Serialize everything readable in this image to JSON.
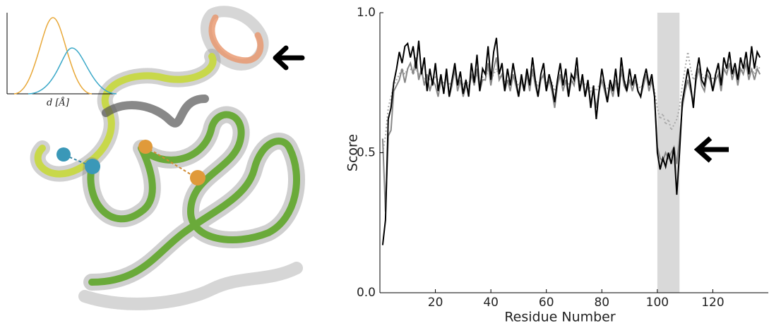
{
  "inset": {
    "xlabel": "d [Å]"
  },
  "chart_data": {
    "type": "line",
    "xlabel": "Residue Number",
    "ylabel": "Score",
    "xlim": [
      0,
      140
    ],
    "ylim": [
      0,
      1
    ],
    "xticks": [
      20,
      40,
      60,
      80,
      100,
      120
    ],
    "yticks": [
      {
        "value": 0,
        "label": "0.0"
      },
      {
        "value": 0.5,
        "label": "0.5"
      },
      {
        "value": 1,
        "label": "1.0"
      }
    ],
    "shade_range": [
      100,
      108
    ],
    "shade_color": "#d9d9d9",
    "x": [
      1,
      2,
      3,
      4,
      5,
      6,
      7,
      8,
      9,
      10,
      11,
      12,
      13,
      14,
      15,
      16,
      17,
      18,
      19,
      20,
      21,
      22,
      23,
      24,
      25,
      26,
      27,
      28,
      29,
      30,
      31,
      32,
      33,
      34,
      35,
      36,
      37,
      38,
      39,
      40,
      41,
      42,
      43,
      44,
      45,
      46,
      47,
      48,
      49,
      50,
      51,
      52,
      53,
      54,
      55,
      56,
      57,
      58,
      59,
      60,
      61,
      62,
      63,
      64,
      65,
      66,
      67,
      68,
      69,
      70,
      71,
      72,
      73,
      74,
      75,
      76,
      77,
      78,
      79,
      80,
      81,
      82,
      83,
      84,
      85,
      86,
      87,
      88,
      89,
      90,
      91,
      92,
      93,
      94,
      95,
      96,
      97,
      98,
      99,
      100,
      101,
      102,
      103,
      104,
      105,
      106,
      107,
      108,
      109,
      110,
      111,
      112,
      113,
      114,
      115,
      116,
      117,
      118,
      119,
      120,
      121,
      122,
      123,
      124,
      125,
      126,
      127,
      128,
      129,
      130,
      131,
      132,
      133,
      134,
      135,
      136,
      137
    ],
    "series": [
      {
        "color": "#aaaaaa",
        "dash": true,
        "values": [
          0.5,
          0.56,
          0.66,
          0.7,
          0.74,
          0.76,
          0.78,
          0.8,
          0.78,
          0.8,
          0.8,
          0.78,
          0.8,
          0.78,
          0.78,
          0.76,
          0.78,
          0.76,
          0.76,
          0.77,
          0.76,
          0.76,
          0.75,
          0.77,
          0.74,
          0.76,
          0.78,
          0.76,
          0.76,
          0.74,
          0.76,
          0.74,
          0.78,
          0.76,
          0.78,
          0.75,
          0.77,
          0.76,
          0.8,
          0.76,
          0.78,
          0.8,
          0.77,
          0.78,
          0.75,
          0.76,
          0.75,
          0.77,
          0.76,
          0.74,
          0.76,
          0.74,
          0.77,
          0.75,
          0.78,
          0.76,
          0.74,
          0.76,
          0.77,
          0.75,
          0.76,
          0.75,
          0.72,
          0.75,
          0.77,
          0.75,
          0.76,
          0.74,
          0.76,
          0.75,
          0.78,
          0.75,
          0.76,
          0.74,
          0.75,
          0.72,
          0.74,
          0.72,
          0.74,
          0.76,
          0.74,
          0.73,
          0.75,
          0.74,
          0.76,
          0.74,
          0.78,
          0.76,
          0.74,
          0.76,
          0.74,
          0.76,
          0.74,
          0.73,
          0.75,
          0.77,
          0.74,
          0.76,
          0.72,
          0.66,
          0.62,
          0.64,
          0.6,
          0.62,
          0.58,
          0.6,
          0.62,
          0.66,
          0.74,
          0.8,
          0.86,
          0.8,
          0.76,
          0.78,
          0.8,
          0.78,
          0.76,
          0.8,
          0.78,
          0.76,
          0.78,
          0.8,
          0.76,
          0.8,
          0.79,
          0.82,
          0.78,
          0.8,
          0.77,
          0.8,
          0.79,
          0.82,
          0.78,
          0.8,
          0.78,
          0.81,
          0.8
        ]
      },
      {
        "color": "#888888",
        "dash": false,
        "values": [
          0.55,
          0.29,
          0.56,
          0.58,
          0.72,
          0.74,
          0.76,
          0.8,
          0.75,
          0.8,
          0.82,
          0.78,
          0.84,
          0.76,
          0.8,
          0.74,
          0.78,
          0.72,
          0.76,
          0.74,
          0.7,
          0.76,
          0.72,
          0.78,
          0.7,
          0.74,
          0.8,
          0.72,
          0.76,
          0.7,
          0.74,
          0.72,
          0.78,
          0.74,
          0.8,
          0.72,
          0.76,
          0.76,
          0.82,
          0.74,
          0.8,
          0.84,
          0.76,
          0.78,
          0.72,
          0.76,
          0.72,
          0.78,
          0.74,
          0.7,
          0.76,
          0.72,
          0.78,
          0.72,
          0.8,
          0.74,
          0.7,
          0.76,
          0.78,
          0.72,
          0.76,
          0.72,
          0.66,
          0.74,
          0.78,
          0.72,
          0.76,
          0.7,
          0.76,
          0.74,
          0.8,
          0.72,
          0.76,
          0.7,
          0.74,
          0.68,
          0.72,
          0.66,
          0.72,
          0.76,
          0.72,
          0.68,
          0.74,
          0.7,
          0.76,
          0.7,
          0.8,
          0.74,
          0.72,
          0.76,
          0.72,
          0.76,
          0.72,
          0.7,
          0.74,
          0.78,
          0.72,
          0.76,
          0.7,
          0.52,
          0.48,
          0.47,
          0.5,
          0.48,
          0.5,
          0.52,
          0.46,
          0.55,
          0.66,
          0.72,
          0.76,
          0.72,
          0.68,
          0.76,
          0.8,
          0.74,
          0.72,
          0.78,
          0.76,
          0.72,
          0.76,
          0.78,
          0.72,
          0.8,
          0.78,
          0.82,
          0.76,
          0.8,
          0.74,
          0.8,
          0.78,
          0.82,
          0.76,
          0.8,
          0.76,
          0.8,
          0.78
        ]
      },
      {
        "color": "#000000",
        "dash": false,
        "values": [
          0.17,
          0.26,
          0.62,
          0.66,
          0.75,
          0.8,
          0.86,
          0.82,
          0.88,
          0.89,
          0.84,
          0.88,
          0.8,
          0.9,
          0.78,
          0.84,
          0.72,
          0.8,
          0.74,
          0.82,
          0.72,
          0.78,
          0.71,
          0.8,
          0.7,
          0.76,
          0.82,
          0.74,
          0.79,
          0.71,
          0.76,
          0.7,
          0.82,
          0.75,
          0.85,
          0.72,
          0.8,
          0.78,
          0.88,
          0.76,
          0.86,
          0.91,
          0.78,
          0.82,
          0.72,
          0.8,
          0.74,
          0.82,
          0.76,
          0.7,
          0.78,
          0.72,
          0.8,
          0.74,
          0.84,
          0.76,
          0.7,
          0.78,
          0.82,
          0.72,
          0.78,
          0.74,
          0.68,
          0.76,
          0.82,
          0.74,
          0.8,
          0.7,
          0.78,
          0.76,
          0.84,
          0.72,
          0.78,
          0.7,
          0.76,
          0.66,
          0.74,
          0.62,
          0.72,
          0.8,
          0.74,
          0.68,
          0.76,
          0.72,
          0.8,
          0.7,
          0.84,
          0.76,
          0.72,
          0.8,
          0.74,
          0.78,
          0.72,
          0.7,
          0.76,
          0.8,
          0.74,
          0.78,
          0.7,
          0.5,
          0.44,
          0.48,
          0.45,
          0.5,
          0.46,
          0.52,
          0.35,
          0.5,
          0.68,
          0.74,
          0.8,
          0.74,
          0.66,
          0.78,
          0.84,
          0.76,
          0.74,
          0.8,
          0.78,
          0.72,
          0.78,
          0.82,
          0.74,
          0.84,
          0.8,
          0.86,
          0.78,
          0.82,
          0.76,
          0.84,
          0.8,
          0.86,
          0.78,
          0.88,
          0.8,
          0.86,
          0.84
        ]
      }
    ]
  }
}
